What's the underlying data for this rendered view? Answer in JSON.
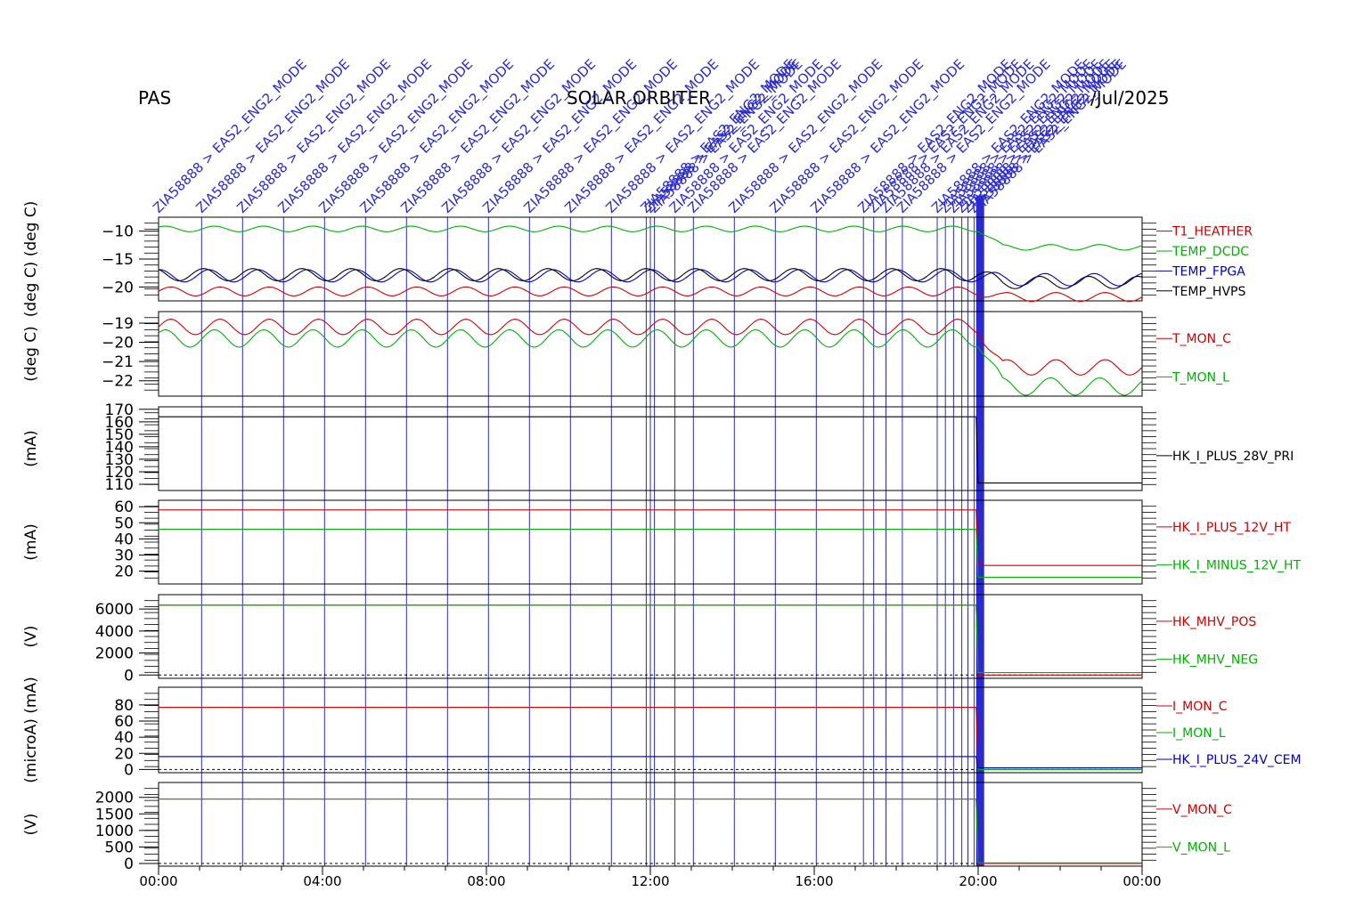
{
  "header": {
    "instrument": "PAS",
    "mission": "SOLAR ORBITER",
    "date": "/Jul/2025"
  },
  "colors": {
    "red": "#d00000",
    "green": "#00b000",
    "blue": "#0000c8",
    "black": "#000000",
    "event_blue": "#2a2ad0"
  },
  "events": {
    "label": "ZIA58888 > EAS2_ENG2_MODE",
    "times_hours": [
      0,
      1.05,
      2.05,
      3.05,
      4.05,
      5.05,
      6.05,
      7.05,
      8.05,
      9.05,
      10.05,
      11.05,
      11.9,
      12.0,
      12.1,
      12.6,
      13.05,
      14.05,
      15.05,
      16.05,
      17.2,
      17.45,
      17.75,
      18.15,
      19.0,
      19.2,
      19.4,
      19.6,
      19.75,
      19.9,
      20.0
    ]
  },
  "chart_data": {
    "type": "line",
    "x_axis": {
      "range_hours": [
        0,
        24
      ],
      "tick_labels": [
        "00:00",
        "04:00",
        "08:00",
        "12:00",
        "16:00",
        "20:00",
        "00:00"
      ],
      "tick_hours": [
        0,
        4,
        8,
        12,
        16,
        20,
        24
      ]
    },
    "panels": [
      {
        "ylabel": "(deg C) (deg C)",
        "ylim": [
          -22.5,
          -7.5
        ],
        "yticks": [
          -10,
          -15,
          -20
        ],
        "series": [
          {
            "name": "T1_HEATHER",
            "color": "red",
            "before": -20.8,
            "after": -21.8,
            "amp": 0.8
          },
          {
            "name": "TEMP_DCDC",
            "color": "green",
            "before": -9.6,
            "after": -12.9,
            "amp": 0.5
          },
          {
            "name": "TEMP_FPGA",
            "color": "blue",
            "before": -18.0,
            "after": -18.7,
            "amp": 1.1
          },
          {
            "name": "TEMP_HVPS",
            "color": "black",
            "before": -17.8,
            "after": -19.2,
            "amp": 1.1
          }
        ]
      },
      {
        "ylabel": "(deg C)",
        "ylim": [
          -22.8,
          -18.4
        ],
        "yticks": [
          -19,
          -20,
          -21,
          -22
        ],
        "series": [
          {
            "name": "T_MON_C",
            "color": "red",
            "before": -19.2,
            "after": -21.3,
            "amp": 0.4
          },
          {
            "name": "T_MON_L",
            "color": "green",
            "before": -19.8,
            "after": -22.3,
            "amp": 0.45
          }
        ]
      },
      {
        "ylabel": "(mA)",
        "ylim": [
          105,
          172
        ],
        "yticks": [
          110,
          120,
          130,
          140,
          150,
          160,
          170
        ],
        "series": [
          {
            "name": "HK_I_PLUS_28V_PRI",
            "color": "black",
            "before": 164,
            "after": 111,
            "amp": 0
          }
        ]
      },
      {
        "ylabel": "(mA)",
        "ylim": [
          12,
          64
        ],
        "yticks": [
          20,
          30,
          40,
          50,
          60
        ],
        "series": [
          {
            "name": "HK_I_PLUS_12V_HT",
            "color": "red",
            "before": 58,
            "after": 23.5,
            "amp": 0
          },
          {
            "name": "HK_I_MINUS_12V_HT",
            "color": "green",
            "before": 46,
            "after": 16.2,
            "amp": 0
          }
        ]
      },
      {
        "ylabel": "(V)",
        "ylim": [
          -300,
          7300
        ],
        "yticks": [
          0,
          2000,
          4000,
          6000
        ],
        "series": [
          {
            "name": "HK_MHV_POS",
            "color": "red",
            "before": 6350,
            "after": 0,
            "amp": 0
          },
          {
            "name": "HK_MHV_NEG",
            "color": "green",
            "before": 6350,
            "after": 220,
            "amp": 0
          }
        ]
      },
      {
        "ylabel": "(microA) (mA)",
        "ylim": [
          -4,
          102
        ],
        "yticks": [
          0,
          20,
          40,
          60,
          80
        ],
        "series": [
          {
            "name": "I_MON_C",
            "color": "red",
            "before": 77,
            "after": 0,
            "amp": 0
          },
          {
            "name": "I_MON_L",
            "color": "green",
            "before": 16,
            "after": 0,
            "amp": 0
          },
          {
            "name": "HK_I_PLUS_24V_CEM",
            "color": "blue",
            "before": 16,
            "after": 2,
            "amp": 0
          }
        ]
      },
      {
        "ylabel": "(V)",
        "ylim": [
          -80,
          2450
        ],
        "yticks": [
          0,
          500,
          1000,
          1500,
          2000
        ],
        "series": [
          {
            "name": "V_MON_C",
            "color": "red",
            "before": 1950,
            "after": 0,
            "amp": 0
          },
          {
            "name": "V_MON_L",
            "color": "green",
            "before": 1950,
            "after": 20,
            "amp": 0
          }
        ]
      }
    ]
  }
}
